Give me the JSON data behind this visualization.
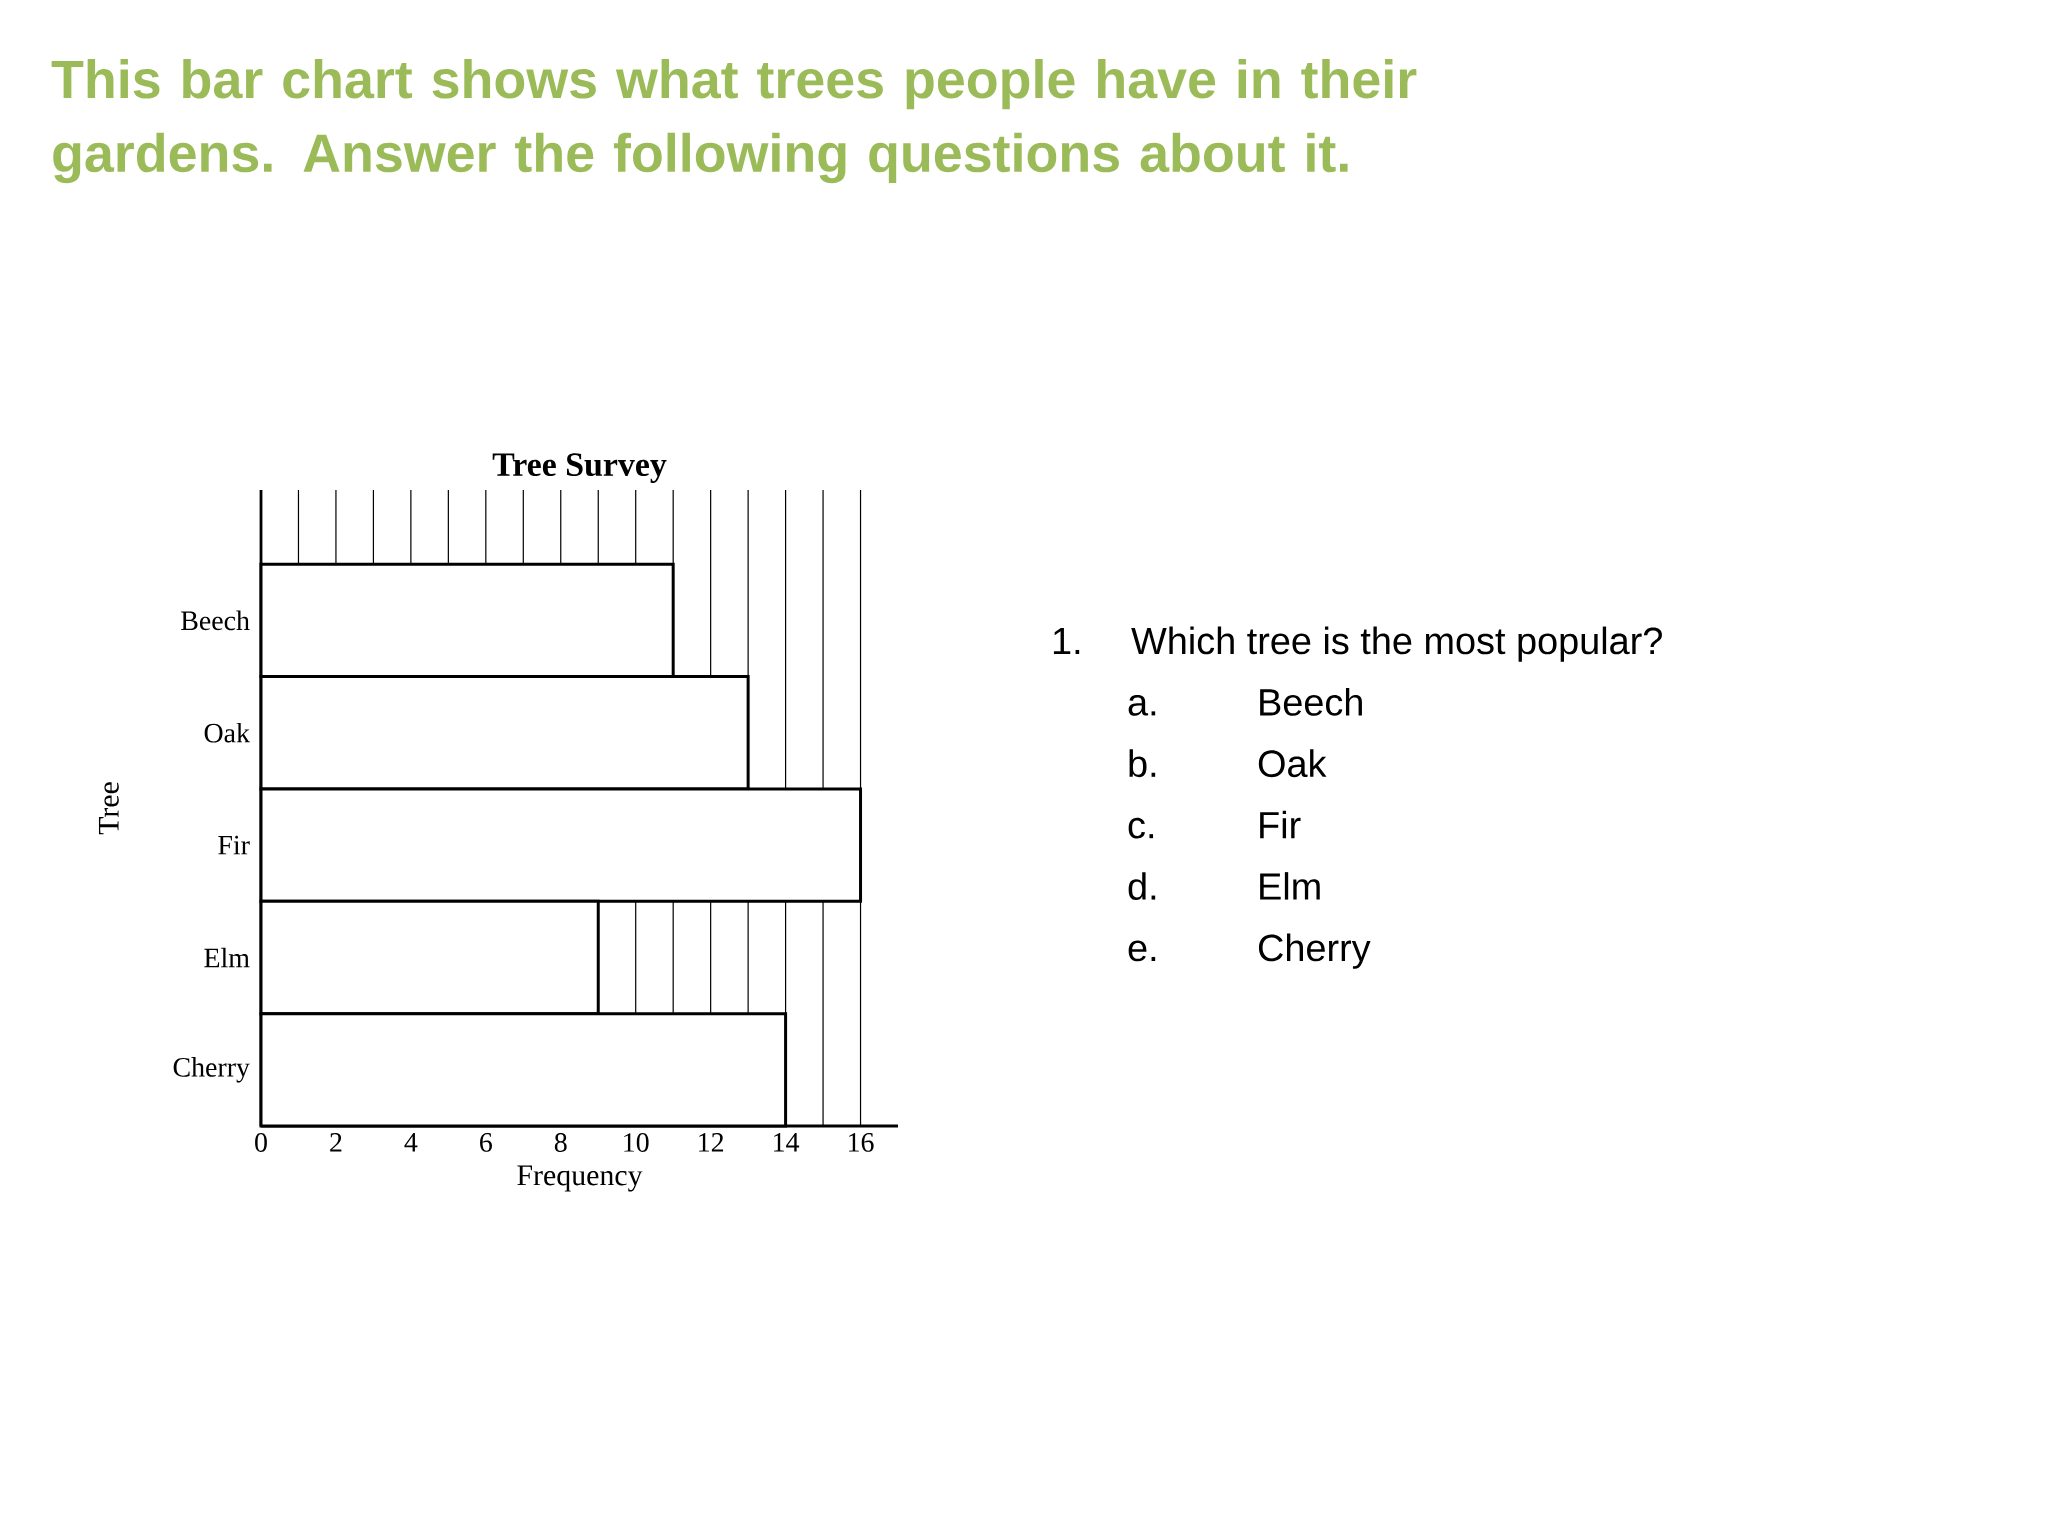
{
  "chart_data": {
    "type": "bar",
    "orientation": "horizontal",
    "title": "Tree Survey",
    "xlabel": "Frequency",
    "ylabel": "Tree",
    "categories": [
      "Beech",
      "Oak",
      "Fir",
      "Elm",
      "Cherry"
    ],
    "values": [
      11,
      13,
      16,
      9,
      14
    ],
    "color": "#ffffff",
    "xlim": [
      0,
      17
    ],
    "xticks": [
      0,
      {
        "value": 1,
        "label": null
      },
      2,
      {
        "value": 3,
        "label": null
      },
      4,
      {
        "value": 5,
        "label": null
      },
      6,
      {
        "value": 7,
        "label": null
      },
      8,
      {
        "value": 9,
        "label": null
      },
      10,
      {
        "value": 11,
        "label": null
      },
      12,
      {
        "value": 13,
        "label": null
      },
      14,
      {
        "value": 15,
        "label": null
      },
      16
    ],
    "grid": "x",
    "annotations": [
      "This bar chart shows what trees people have in their gardens.  Answer the following questions about it.",
      "1.",
      "Which tree is the most popular?",
      "a.",
      "Beech",
      "b.",
      "Oak",
      "c.",
      "Fir",
      "d.",
      "Elm",
      "e.",
      "Cherry"
    ]
  }
}
